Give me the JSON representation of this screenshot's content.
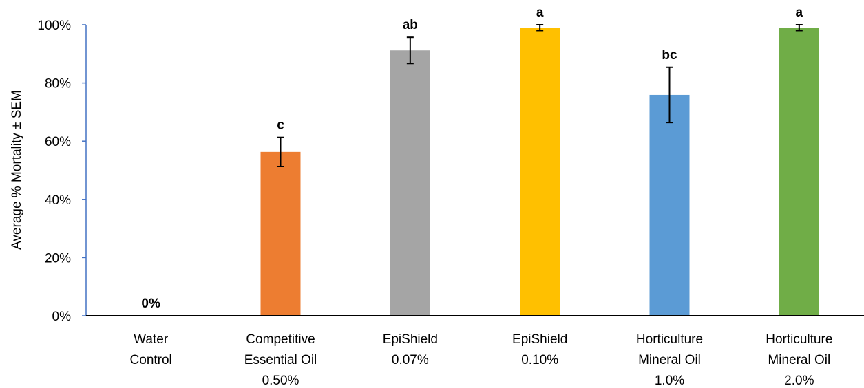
{
  "chart_data": {
    "type": "bar",
    "title": "",
    "xlabel": "",
    "ylabel": "Average % Mortality ± SEM",
    "ylim": [
      0,
      100
    ],
    "yticks": [
      "0%",
      "20%",
      "40%",
      "60%",
      "80%",
      "100%"
    ],
    "ytick_values": [
      0,
      20,
      40,
      60,
      80,
      100
    ],
    "grid": false,
    "legend": "none",
    "categories": [
      [
        "Water",
        "Control"
      ],
      [
        "Competitive",
        "Essential Oil",
        "0.50%"
      ],
      [
        "EpiShield",
        "0.07%"
      ],
      [
        "EpiShield",
        "0.10%"
      ],
      [
        "Horticulture",
        "Mineral Oil",
        "1.0%"
      ],
      [
        "Horticulture",
        "Mineral Oil",
        "2.0%"
      ]
    ],
    "values": [
      0,
      56.3,
      91.2,
      99.0,
      75.9,
      99.0
    ],
    "errors": [
      0,
      5.0,
      4.5,
      1.0,
      9.5,
      1.0
    ],
    "significance_letters": [
      "0%",
      "c",
      "ab",
      "a",
      "bc",
      "a"
    ],
    "colors": [
      "#4472C4",
      "#ED7D31",
      "#A5A5A5",
      "#FFC000",
      "#5B9BD5",
      "#70AD47"
    ]
  }
}
